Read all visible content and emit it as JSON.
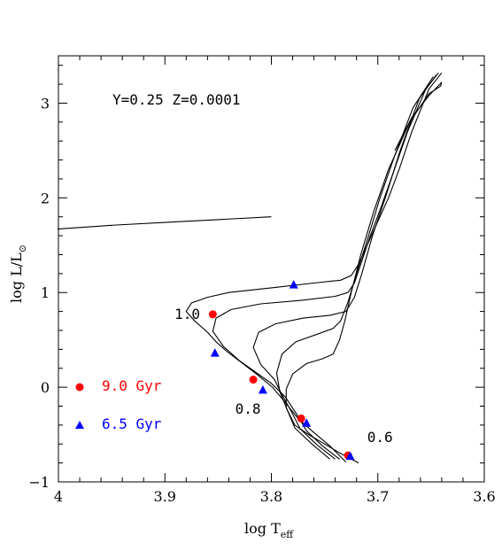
{
  "chart_data": {
    "type": "scatter",
    "title": "",
    "xlabel": "log T",
    "xlabel_sub": "eff",
    "ylabel": "log L/L",
    "ylabel_symbol": "⊙",
    "xlim": [
      4.0,
      3.6
    ],
    "ylim": [
      -1.0,
      3.5
    ],
    "x_ticks": [
      4,
      3.9,
      3.8,
      3.7,
      3.6
    ],
    "x_tick_labels": [
      "4",
      "3.9",
      "3.8",
      "3.7",
      "3.6"
    ],
    "y_ticks": [
      -1,
      0,
      1,
      2,
      3
    ],
    "y_tick_labels": [
      "−1",
      "0",
      "1",
      "2",
      "3"
    ],
    "grid": false,
    "composition_label": "Y=0.25  Z=0.0001",
    "mass_labels": [
      {
        "text": "1.0",
        "x": 3.891,
        "y": 0.72
      },
      {
        "text": "0.8",
        "x": 3.834,
        "y": -0.28
      },
      {
        "text": "0.6",
        "x": 3.71,
        "y": -0.58
      }
    ],
    "series": [
      {
        "name": "9.0 Gyr",
        "marker": "circle",
        "color": "#ff0000",
        "points": [
          [
            3.855,
            0.77
          ],
          [
            3.817,
            0.08
          ],
          [
            3.772,
            -0.33
          ],
          [
            3.728,
            -0.72
          ]
        ]
      },
      {
        "name": "6.5 Gyr",
        "marker": "triangle",
        "color": "#0000ff",
        "points": [
          [
            3.779,
            1.08
          ],
          [
            3.853,
            0.36
          ],
          [
            3.808,
            -0.03
          ],
          [
            3.767,
            -0.38
          ],
          [
            3.726,
            -0.73
          ]
        ]
      }
    ],
    "tracks": [
      {
        "points": [
          [
            3.73,
            -0.79
          ],
          [
            3.745,
            -0.62
          ],
          [
            3.761,
            -0.47
          ],
          [
            3.775,
            -0.33
          ],
          [
            3.787,
            -0.16
          ],
          [
            3.799,
            0.0
          ],
          [
            3.813,
            0.13
          ],
          [
            3.828,
            0.26
          ],
          [
            3.842,
            0.38
          ],
          [
            3.852,
            0.48
          ],
          [
            3.86,
            0.58
          ],
          [
            3.872,
            0.7
          ],
          [
            3.88,
            0.8
          ],
          [
            3.875,
            0.89
          ],
          [
            3.86,
            0.95
          ],
          [
            3.84,
            1.0
          ],
          [
            3.8,
            1.05
          ],
          [
            3.76,
            1.1
          ],
          [
            3.735,
            1.13
          ],
          [
            3.725,
            1.18
          ],
          [
            3.718,
            1.3
          ],
          [
            3.71,
            1.5
          ],
          [
            3.7,
            1.75
          ],
          [
            3.69,
            2.0
          ],
          [
            3.68,
            2.3
          ],
          [
            3.668,
            2.7
          ],
          [
            3.652,
            3.15
          ],
          [
            3.64,
            3.32
          ]
        ]
      },
      {
        "points": [
          [
            3.736,
            -0.76
          ],
          [
            3.752,
            -0.62
          ],
          [
            3.767,
            -0.46
          ],
          [
            3.776,
            -0.29
          ],
          [
            3.787,
            -0.1
          ],
          [
            3.8,
            0.04
          ],
          [
            3.815,
            0.16
          ],
          [
            3.83,
            0.28
          ],
          [
            3.845,
            0.43
          ],
          [
            3.855,
            0.59
          ],
          [
            3.852,
            0.73
          ],
          [
            3.838,
            0.82
          ],
          [
            3.81,
            0.88
          ],
          [
            3.77,
            0.92
          ],
          [
            3.74,
            0.96
          ],
          [
            3.728,
            1.0
          ],
          [
            3.722,
            1.1
          ],
          [
            3.716,
            1.3
          ],
          [
            3.707,
            1.6
          ],
          [
            3.697,
            1.9
          ],
          [
            3.686,
            2.25
          ],
          [
            3.672,
            2.7
          ],
          [
            3.655,
            3.15
          ],
          [
            3.643,
            3.32
          ]
        ]
      },
      {
        "points": [
          [
            3.74,
            -0.76
          ],
          [
            3.757,
            -0.61
          ],
          [
            3.773,
            -0.44
          ],
          [
            3.781,
            -0.26
          ],
          [
            3.79,
            -0.08
          ],
          [
            3.797,
            0.08
          ],
          [
            3.81,
            0.24
          ],
          [
            3.817,
            0.42
          ],
          [
            3.812,
            0.58
          ],
          [
            3.796,
            0.67
          ],
          [
            3.77,
            0.73
          ],
          [
            3.745,
            0.76
          ],
          [
            3.73,
            0.8
          ],
          [
            3.722,
            0.95
          ],
          [
            3.715,
            1.2
          ],
          [
            3.705,
            1.6
          ],
          [
            3.693,
            2.0
          ],
          [
            3.679,
            2.5
          ],
          [
            3.661,
            3.05
          ],
          [
            3.645,
            3.3
          ]
        ]
      },
      {
        "points": [
          [
            3.745,
            -0.76
          ],
          [
            3.762,
            -0.6
          ],
          [
            3.778,
            -0.43
          ],
          [
            3.785,
            -0.24
          ],
          [
            3.792,
            -0.05
          ],
          [
            3.795,
            0.15
          ],
          [
            3.79,
            0.35
          ],
          [
            3.777,
            0.48
          ],
          [
            3.757,
            0.56
          ],
          [
            3.742,
            0.62
          ],
          [
            3.735,
            0.7
          ],
          [
            3.728,
            0.9
          ],
          [
            3.72,
            1.2
          ],
          [
            3.71,
            1.55
          ],
          [
            3.698,
            2.0
          ],
          [
            3.684,
            2.45
          ],
          [
            3.667,
            2.95
          ],
          [
            3.648,
            3.28
          ]
        ]
      },
      {
        "points": [
          [
            3.718,
            -0.8
          ],
          [
            3.735,
            -0.7
          ],
          [
            3.75,
            -0.6
          ],
          [
            3.765,
            -0.5
          ],
          [
            3.778,
            -0.4
          ],
          [
            3.786,
            -0.22
          ],
          [
            3.786,
            -0.02
          ],
          [
            3.78,
            0.14
          ],
          [
            3.767,
            0.25
          ],
          [
            3.752,
            0.3
          ],
          [
            3.742,
            0.35
          ],
          [
            3.736,
            0.5
          ],
          [
            3.731,
            0.7
          ],
          [
            3.725,
            1.0
          ],
          [
            3.716,
            1.4
          ],
          [
            3.704,
            1.85
          ],
          [
            3.69,
            2.3
          ],
          [
            3.67,
            2.8
          ],
          [
            3.652,
            3.1
          ],
          [
            3.641,
            3.18
          ],
          [
            3.64,
            3.22
          ],
          [
            3.652,
            3.08
          ],
          [
            3.668,
            2.85
          ],
          [
            3.684,
            2.5
          ]
        ]
      },
      {
        "points": [
          [
            4.001,
            1.67
          ],
          [
            3.95,
            1.71
          ],
          [
            3.9,
            1.74
          ],
          [
            3.85,
            1.77
          ],
          [
            3.8,
            1.8
          ]
        ]
      }
    ],
    "legend": [
      {
        "label": "9.0 Gyr",
        "color": "#ff0000",
        "marker": "circle"
      },
      {
        "label": "6.5 Gyr",
        "color": "#0000ff",
        "marker": "triangle"
      }
    ],
    "legend_position": "left"
  }
}
